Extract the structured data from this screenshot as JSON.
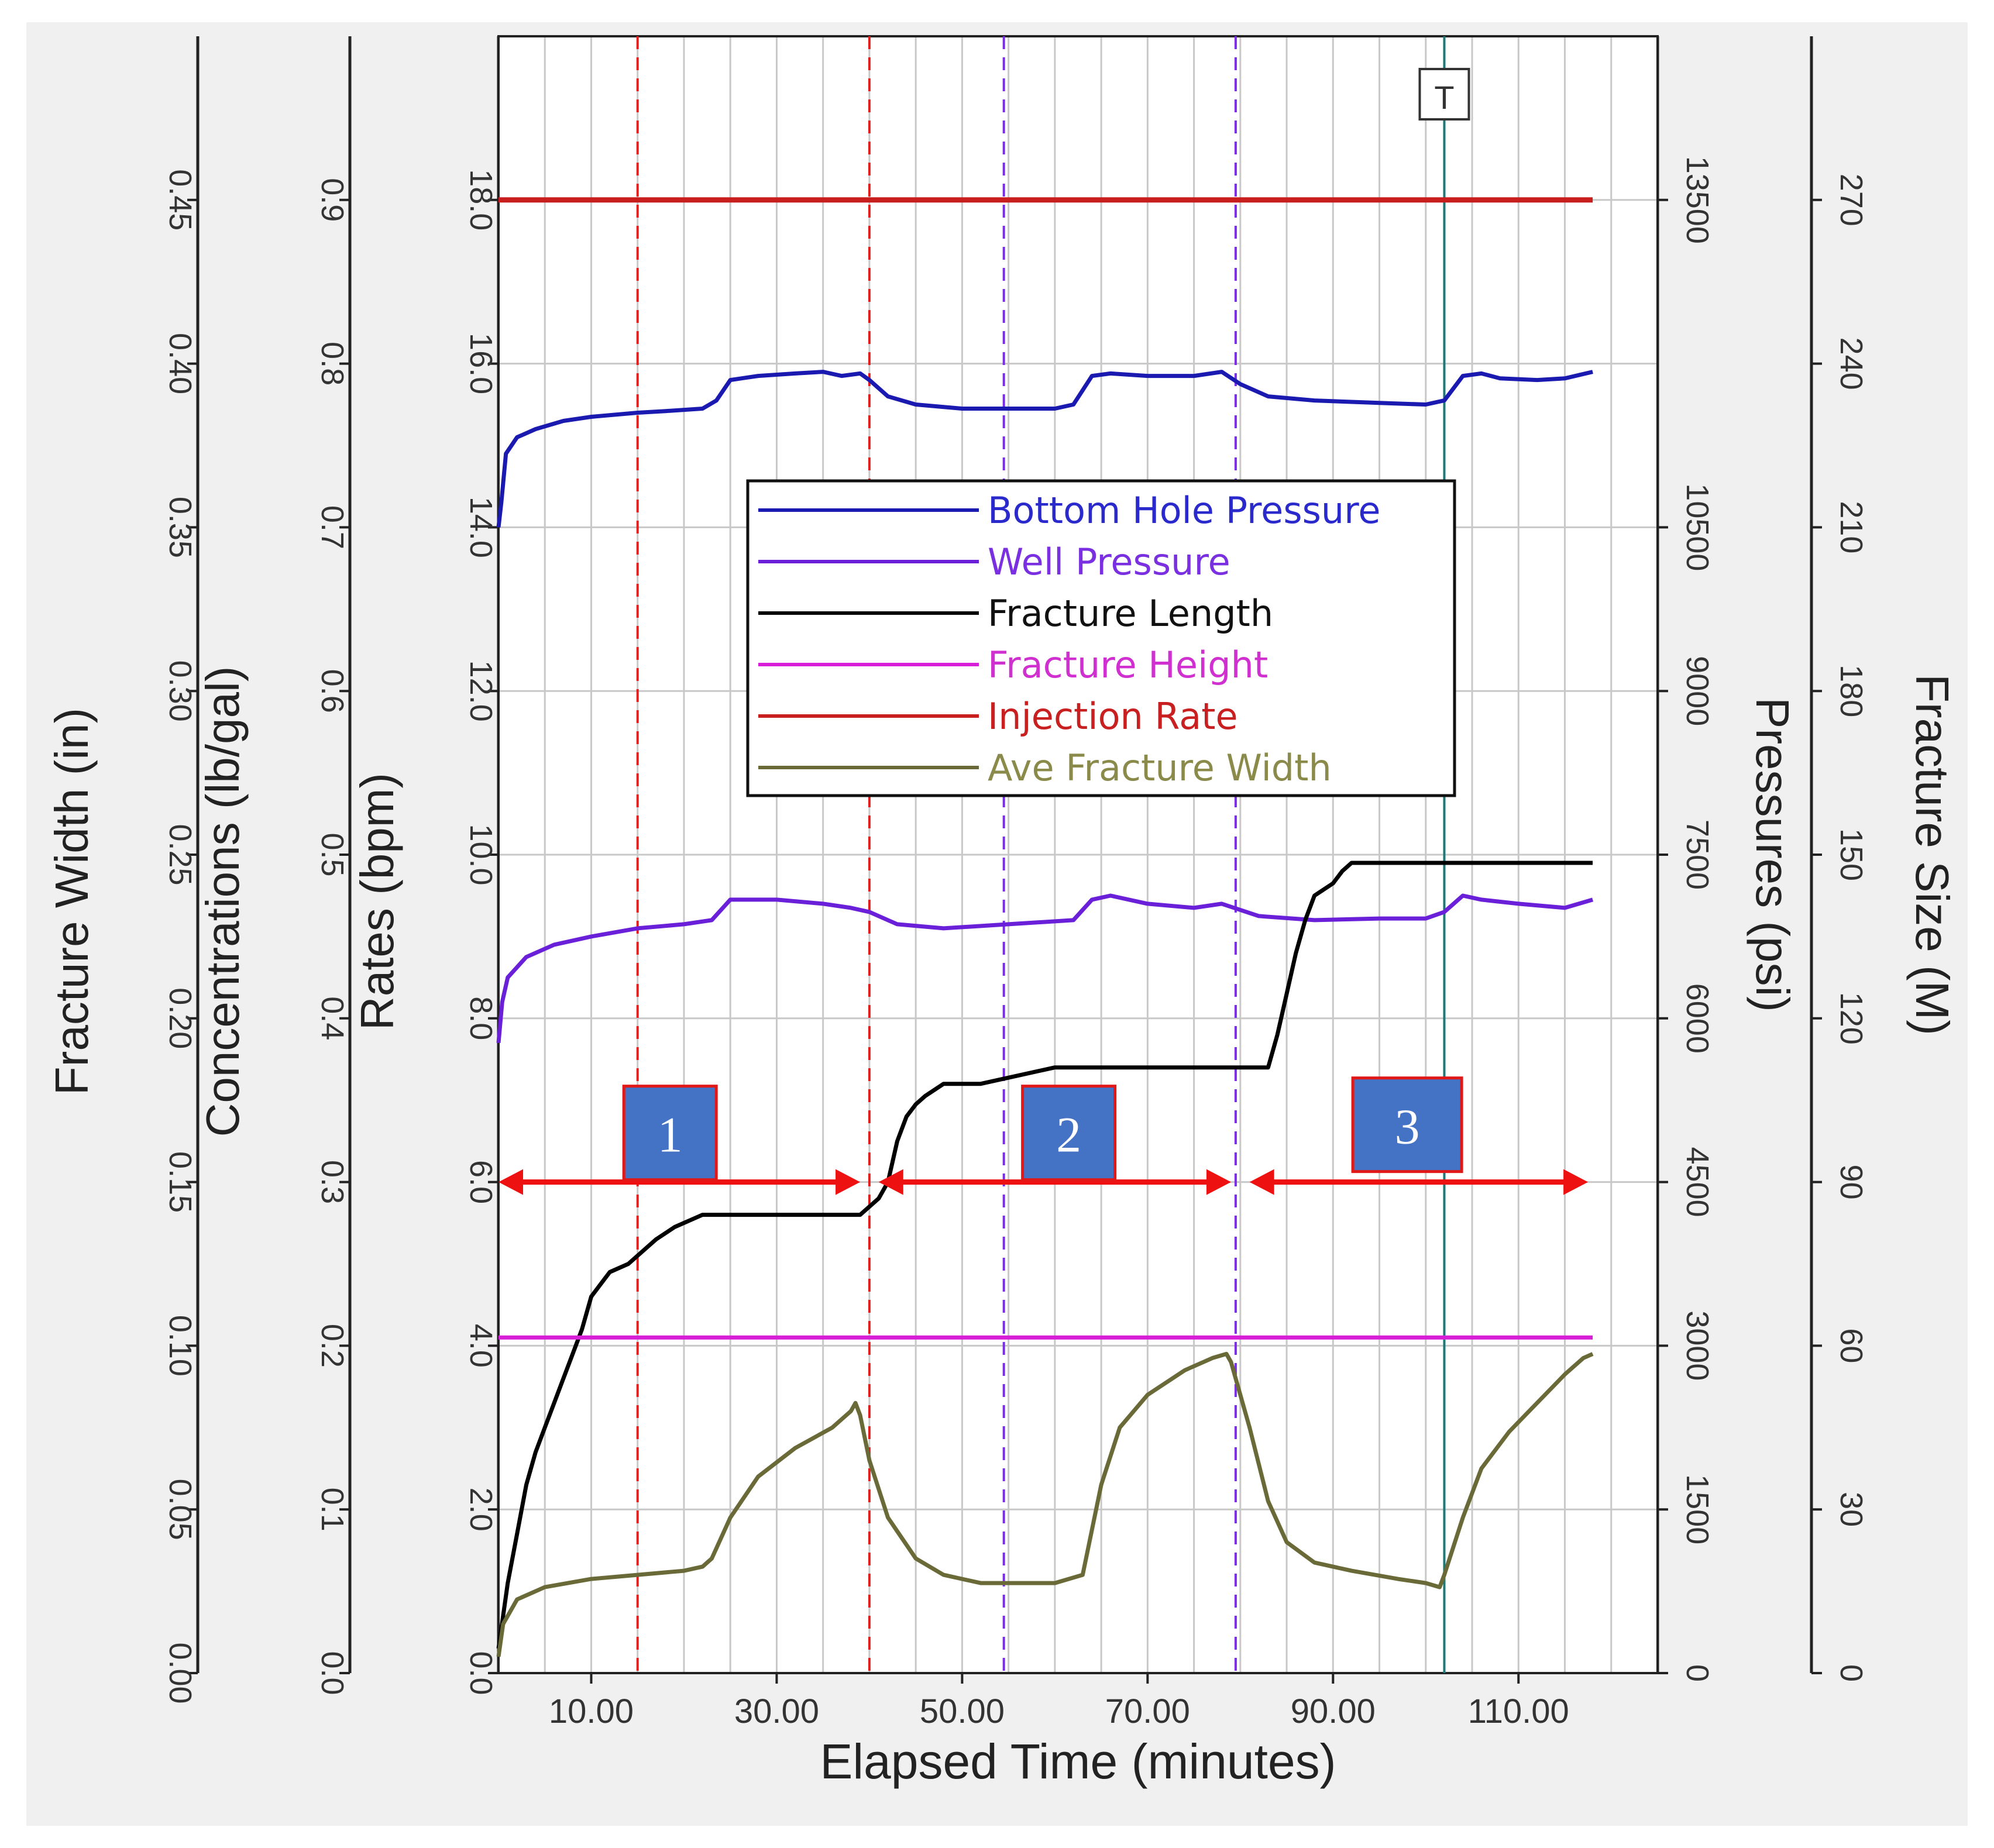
{
  "chart_data": {
    "type": "line",
    "x_axis": {
      "label": "Elapsed Time (minutes)",
      "ticks": [
        "10.00",
        "30.00",
        "50.00",
        "70.00",
        "90.00",
        "110.00"
      ],
      "tick_values": [
        10,
        30,
        50,
        70,
        90,
        110
      ],
      "range": [
        0,
        125
      ],
      "grid_every": 5
    },
    "left_axes": [
      {
        "id": "width",
        "label": "Fracture Width (in)",
        "range": [
          0,
          0.5
        ],
        "ticks": [
          "0.00",
          "0.05",
          "0.10",
          "0.15",
          "0.20",
          "0.25",
          "0.30",
          "0.35",
          "0.40",
          "0.45"
        ]
      },
      {
        "id": "conc",
        "label": "Concentrations (lb/gal)",
        "range": [
          0,
          1.0
        ],
        "ticks": [
          "0.0",
          "0.1",
          "0.2",
          "0.3",
          "0.4",
          "0.5",
          "0.6",
          "0.7",
          "0.8",
          "0.9"
        ]
      },
      {
        "id": "rate",
        "label": "Rates (bpm)",
        "range": [
          0,
          20
        ],
        "ticks": [
          "0.0",
          "2.0",
          "4.0",
          "6.0",
          "8.0",
          "10.0",
          "12.0",
          "14.0",
          "16.0",
          "18.0"
        ]
      }
    ],
    "right_axes": [
      {
        "id": "pressure",
        "label": "Pressures (psi)",
        "range": [
          0,
          15000
        ],
        "ticks": [
          "0",
          "1500",
          "3000",
          "4500",
          "6000",
          "7500",
          "9000",
          "10500",
          "13500"
        ],
        "tick_values": [
          0,
          1500,
          3000,
          4500,
          6000,
          7500,
          9000,
          10500,
          13500
        ]
      },
      {
        "id": "size",
        "label": "Fracture Size (M)",
        "range": [
          0,
          300
        ],
        "ticks": [
          "0",
          "30",
          "60",
          "90",
          "120",
          "150",
          "180",
          "210",
          "240",
          "270"
        ]
      }
    ],
    "series": [
      {
        "name": "Bottom Hole Pressure",
        "color": "#1a1ab0",
        "text_color": "#2a2acc",
        "points": [
          [
            0,
            14.0
          ],
          [
            0.3,
            14.3
          ],
          [
            0.8,
            14.9
          ],
          [
            2,
            15.1
          ],
          [
            4,
            15.2
          ],
          [
            7,
            15.3
          ],
          [
            10,
            15.35
          ],
          [
            15,
            15.4
          ],
          [
            18,
            15.42
          ],
          [
            22,
            15.45
          ],
          [
            23.5,
            15.55
          ],
          [
            25,
            15.8
          ],
          [
            28,
            15.85
          ],
          [
            32,
            15.88
          ],
          [
            35,
            15.9
          ],
          [
            37,
            15.85
          ],
          [
            39,
            15.88
          ],
          [
            40,
            15.8
          ],
          [
            42,
            15.6
          ],
          [
            45,
            15.5
          ],
          [
            50,
            15.45
          ],
          [
            55,
            15.45
          ],
          [
            60,
            15.45
          ],
          [
            62,
            15.5
          ],
          [
            64,
            15.85
          ],
          [
            66,
            15.88
          ],
          [
            70,
            15.85
          ],
          [
            75,
            15.85
          ],
          [
            78,
            15.9
          ],
          [
            80,
            15.75
          ],
          [
            83,
            15.6
          ],
          [
            88,
            15.55
          ],
          [
            95,
            15.52
          ],
          [
            100,
            15.5
          ],
          [
            102,
            15.55
          ],
          [
            104,
            15.85
          ],
          [
            106,
            15.88
          ],
          [
            108,
            15.82
          ],
          [
            112,
            15.8
          ],
          [
            115,
            15.82
          ],
          [
            118,
            15.9
          ]
        ]
      },
      {
        "name": "Well Pressure",
        "color": "#6a20d8",
        "text_color": "#7a30e0",
        "points": [
          [
            0,
            7.7
          ],
          [
            0.4,
            8.2
          ],
          [
            1,
            8.5
          ],
          [
            3,
            8.75
          ],
          [
            6,
            8.9
          ],
          [
            10,
            9.0
          ],
          [
            15,
            9.1
          ],
          [
            20,
            9.15
          ],
          [
            23,
            9.2
          ],
          [
            25,
            9.45
          ],
          [
            30,
            9.45
          ],
          [
            35,
            9.4
          ],
          [
            38,
            9.35
          ],
          [
            40,
            9.3
          ],
          [
            43,
            9.15
          ],
          [
            48,
            9.1
          ],
          [
            55,
            9.15
          ],
          [
            62,
            9.2
          ],
          [
            64,
            9.45
          ],
          [
            66,
            9.5
          ],
          [
            70,
            9.4
          ],
          [
            75,
            9.35
          ],
          [
            78,
            9.4
          ],
          [
            82,
            9.25
          ],
          [
            88,
            9.2
          ],
          [
            95,
            9.22
          ],
          [
            100,
            9.22
          ],
          [
            102,
            9.3
          ],
          [
            104,
            9.5
          ],
          [
            106,
            9.45
          ],
          [
            110,
            9.4
          ],
          [
            115,
            9.35
          ],
          [
            118,
            9.45
          ]
        ]
      },
      {
        "name": "Fracture Length",
        "color": "#000000",
        "text_color": "#111111",
        "points": [
          [
            0,
            0.3
          ],
          [
            0.5,
            0.7
          ],
          [
            1,
            1.1
          ],
          [
            2,
            1.7
          ],
          [
            3,
            2.3
          ],
          [
            4,
            2.7
          ],
          [
            5,
            3.0
          ],
          [
            6,
            3.3
          ],
          [
            7,
            3.6
          ],
          [
            8,
            3.9
          ],
          [
            9,
            4.2
          ],
          [
            10,
            4.6
          ],
          [
            11,
            4.75
          ],
          [
            12,
            4.9
          ],
          [
            14,
            5.0
          ],
          [
            15,
            5.1
          ],
          [
            17,
            5.3
          ],
          [
            19,
            5.45
          ],
          [
            21,
            5.55
          ],
          [
            22,
            5.6
          ],
          [
            30,
            5.6
          ],
          [
            39,
            5.6
          ],
          [
            40,
            5.7
          ],
          [
            41,
            5.8
          ],
          [
            42,
            6.0
          ],
          [
            43,
            6.5
          ],
          [
            44,
            6.8
          ],
          [
            45,
            6.95
          ],
          [
            46,
            7.05
          ],
          [
            48,
            7.2
          ],
          [
            52,
            7.2
          ],
          [
            56,
            7.3
          ],
          [
            60,
            7.4
          ],
          [
            70,
            7.4
          ],
          [
            83,
            7.4
          ],
          [
            84,
            7.8
          ],
          [
            85,
            8.3
          ],
          [
            86,
            8.8
          ],
          [
            87,
            9.2
          ],
          [
            88,
            9.5
          ],
          [
            90,
            9.65
          ],
          [
            91,
            9.8
          ],
          [
            92,
            9.9
          ],
          [
            100,
            9.9
          ],
          [
            118,
            9.9
          ]
        ]
      },
      {
        "name": "Fracture Height",
        "color": "#d81fd8",
        "text_color": "#d030d0",
        "points": [
          [
            0,
            4.1
          ],
          [
            118,
            4.1
          ]
        ]
      },
      {
        "name": "Injection Rate",
        "color": "#c81e1e",
        "text_color": "#c82020",
        "points": [
          [
            0,
            18.0
          ],
          [
            118,
            18.0
          ]
        ]
      },
      {
        "name": "Ave Fracture Width",
        "color": "#6a6a38",
        "text_color": "#8a8a4a",
        "points": [
          [
            0,
            0.2
          ],
          [
            0.5,
            0.6
          ],
          [
            2,
            0.9
          ],
          [
            5,
            1.05
          ],
          [
            10,
            1.15
          ],
          [
            15,
            1.2
          ],
          [
            20,
            1.25
          ],
          [
            22,
            1.3
          ],
          [
            23,
            1.4
          ],
          [
            25,
            1.9
          ],
          [
            28,
            2.4
          ],
          [
            32,
            2.75
          ],
          [
            36,
            3.0
          ],
          [
            38,
            3.2
          ],
          [
            38.5,
            3.3
          ],
          [
            39,
            3.15
          ],
          [
            40,
            2.6
          ],
          [
            42,
            1.9
          ],
          [
            45,
            1.4
          ],
          [
            48,
            1.2
          ],
          [
            52,
            1.1
          ],
          [
            56,
            1.1
          ],
          [
            60,
            1.1
          ],
          [
            63,
            1.2
          ],
          [
            65,
            2.3
          ],
          [
            67,
            3.0
          ],
          [
            70,
            3.4
          ],
          [
            74,
            3.7
          ],
          [
            77,
            3.85
          ],
          [
            78.5,
            3.9
          ],
          [
            79,
            3.8
          ],
          [
            81,
            3.0
          ],
          [
            83,
            2.1
          ],
          [
            85,
            1.6
          ],
          [
            88,
            1.35
          ],
          [
            92,
            1.25
          ],
          [
            97,
            1.15
          ],
          [
            100,
            1.1
          ],
          [
            101.5,
            1.05
          ],
          [
            102,
            1.2
          ],
          [
            104,
            1.9
          ],
          [
            106,
            2.5
          ],
          [
            109,
            2.95
          ],
          [
            112,
            3.3
          ],
          [
            115,
            3.65
          ],
          [
            117,
            3.85
          ],
          [
            118,
            3.9
          ]
        ]
      }
    ],
    "vertical_markers": [
      {
        "x": 15,
        "style": "dashed",
        "color": "#e02020"
      },
      {
        "x": 40,
        "style": "dashed",
        "color": "#e02020"
      },
      {
        "x": 54.5,
        "style": "dashed",
        "color": "#7a30e0"
      },
      {
        "x": 79.5,
        "style": "dashed",
        "color": "#7a30e0"
      },
      {
        "x": 102,
        "style": "solid",
        "color": "#1a7a7a"
      }
    ],
    "cursor_marker": {
      "label": "T",
      "x": 102
    },
    "stage_arrows": [
      {
        "from": 0,
        "to": 39,
        "y": 6.0
      },
      {
        "from": 41,
        "to": 79,
        "y": 6.0
      },
      {
        "from": 81,
        "to": 117.5,
        "y": 6.0
      }
    ],
    "stage_boxes": [
      {
        "label": "1",
        "x_center": 18.5,
        "y_center": 6.6
      },
      {
        "label": "2",
        "x_center": 61.5,
        "y_center": 6.6
      },
      {
        "label": "3",
        "x_center": 98,
        "y_center": 6.7
      }
    ],
    "legend": {
      "position": "upper-center"
    },
    "grid": true
  }
}
